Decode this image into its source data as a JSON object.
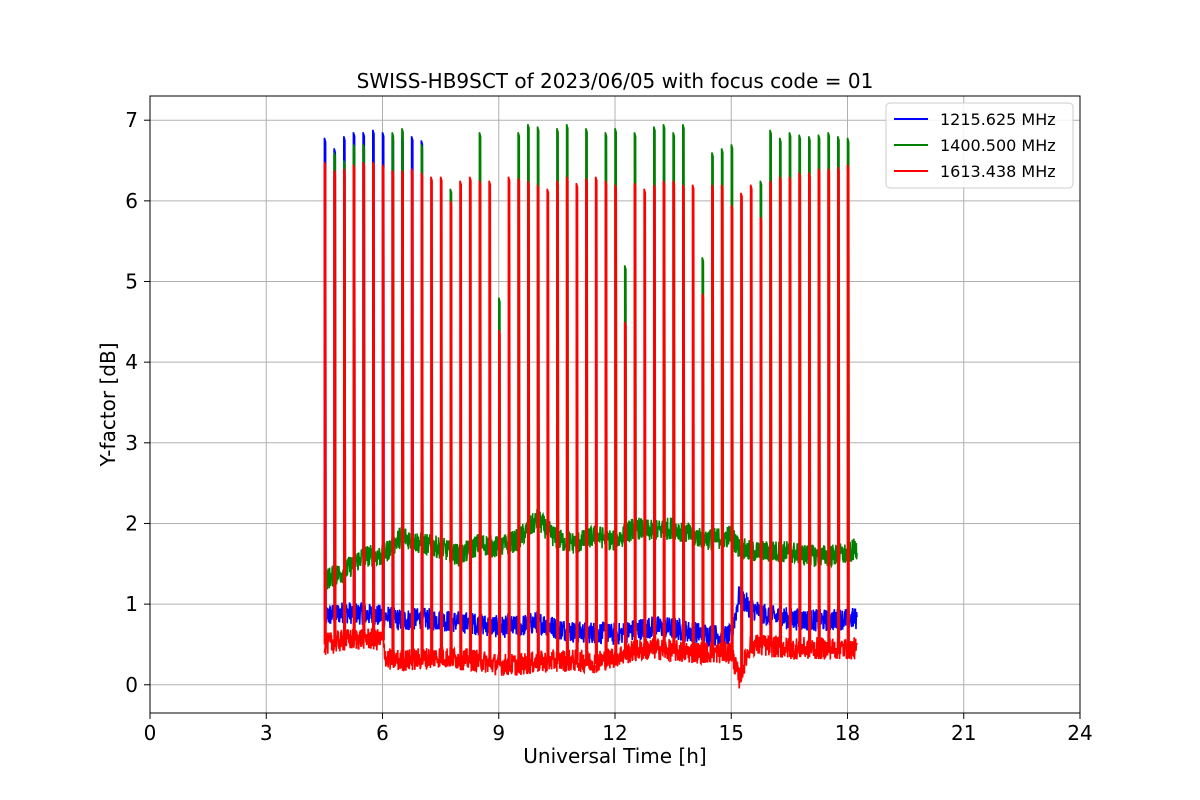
{
  "chart_data": {
    "type": "line",
    "title": "SWISS-HB9SCT of 2023/06/05 with focus code = 01",
    "xlabel": "Universal Time [h]",
    "ylabel": "Y-factor [dB]",
    "xlim": [
      0,
      24
    ],
    "ylim": [
      -0.35,
      7.3
    ],
    "xticks": [
      0,
      3,
      6,
      9,
      12,
      15,
      18,
      21,
      24
    ],
    "yticks": [
      0,
      1,
      2,
      3,
      4,
      5,
      6,
      7
    ],
    "grid": true,
    "legend_position": "top-right",
    "series": [
      {
        "name": "1215.625 MHz",
        "color": "#0000ff",
        "baseline_x": [
          4.5,
          5.0,
          5.5,
          6.0,
          6.5,
          7.0,
          7.5,
          8.0,
          8.5,
          9.0,
          9.5,
          10.0,
          10.5,
          11.0,
          11.5,
          12.0,
          12.5,
          13.0,
          13.5,
          14.0,
          14.5,
          15.0,
          15.2,
          15.5,
          16.0,
          16.5,
          17.0,
          17.5,
          18.0,
          18.25
        ],
        "baseline_y": [
          0.85,
          0.9,
          0.88,
          0.85,
          0.8,
          0.82,
          0.8,
          0.78,
          0.75,
          0.72,
          0.72,
          0.78,
          0.7,
          0.65,
          0.65,
          0.62,
          0.68,
          0.72,
          0.7,
          0.65,
          0.62,
          0.6,
          1.1,
          0.95,
          0.85,
          0.82,
          0.8,
          0.8,
          0.82,
          0.82
        ],
        "peaks_x": [
          4.5,
          4.75,
          5.0,
          5.25,
          5.5,
          5.75,
          6.0,
          6.25,
          6.5,
          6.75,
          7.0
        ],
        "peaks_y": [
          6.78,
          6.65,
          6.8,
          6.85,
          6.85,
          6.88,
          6.85,
          6.8,
          6.78,
          6.8,
          6.75
        ]
      },
      {
        "name": "1400.500 MHz",
        "color": "#008000",
        "baseline_x": [
          4.5,
          5.0,
          5.5,
          6.0,
          6.5,
          7.0,
          7.5,
          8.0,
          8.5,
          9.0,
          9.5,
          10.0,
          10.5,
          11.0,
          11.5,
          12.0,
          12.5,
          13.0,
          13.5,
          14.0,
          14.5,
          15.0,
          15.2,
          15.5,
          16.0,
          16.5,
          17.0,
          17.5,
          18.0,
          18.25
        ],
        "baseline_y": [
          1.3,
          1.4,
          1.6,
          1.6,
          1.85,
          1.75,
          1.7,
          1.6,
          1.75,
          1.7,
          1.8,
          2.05,
          1.8,
          1.75,
          1.85,
          1.78,
          1.95,
          1.9,
          1.95,
          1.85,
          1.8,
          1.85,
          1.7,
          1.65,
          1.65,
          1.65,
          1.6,
          1.6,
          1.62,
          1.7
        ],
        "peaks_x": [
          4.75,
          5.0,
          5.25,
          5.5,
          6.25,
          6.5,
          7.0,
          7.75,
          8.5,
          9.0,
          9.5,
          9.75,
          10.0,
          10.5,
          10.75,
          11.25,
          11.75,
          12.0,
          12.25,
          12.5,
          13.0,
          13.25,
          13.5,
          13.75,
          14.25,
          14.5,
          14.75,
          15.0,
          15.75,
          16.0,
          16.25,
          16.5,
          16.75,
          17.0,
          17.25,
          17.5,
          17.75,
          18.0
        ],
        "peaks_y": [
          6.6,
          6.5,
          6.7,
          6.7,
          6.85,
          6.9,
          6.7,
          6.15,
          6.85,
          4.8,
          6.85,
          6.95,
          6.92,
          6.9,
          6.95,
          6.9,
          6.85,
          6.9,
          5.2,
          6.85,
          6.92,
          6.95,
          6.85,
          6.95,
          5.3,
          6.6,
          6.65,
          6.7,
          6.25,
          6.88,
          6.78,
          6.85,
          6.82,
          6.8,
          6.82,
          6.85,
          6.8,
          6.78
        ]
      },
      {
        "name": "1613.438 MHz",
        "color": "#ff0000",
        "baseline_x": [
          4.5,
          5.0,
          5.5,
          6.0,
          6.1,
          6.5,
          7.0,
          7.5,
          8.0,
          8.5,
          9.0,
          9.5,
          10.0,
          10.5,
          11.0,
          11.5,
          12.0,
          12.5,
          13.0,
          13.5,
          14.0,
          14.5,
          15.0,
          15.2,
          15.5,
          16.0,
          16.5,
          17.0,
          17.5,
          18.0,
          18.25
        ],
        "baseline_y": [
          0.5,
          0.55,
          0.58,
          0.55,
          0.32,
          0.3,
          0.32,
          0.35,
          0.32,
          0.3,
          0.25,
          0.25,
          0.28,
          0.3,
          0.3,
          0.28,
          0.35,
          0.42,
          0.45,
          0.42,
          0.4,
          0.4,
          0.4,
          0.08,
          0.5,
          0.48,
          0.45,
          0.45,
          0.45,
          0.45,
          0.45
        ],
        "peaks_x": [
          4.5,
          4.75,
          5.0,
          5.25,
          5.5,
          5.75,
          6.0,
          6.25,
          6.5,
          6.75,
          7.0,
          7.25,
          7.5,
          7.75,
          8.0,
          8.25,
          8.5,
          8.75,
          9.0,
          9.25,
          9.5,
          9.75,
          10.0,
          10.25,
          10.5,
          10.75,
          11.0,
          11.25,
          11.5,
          11.75,
          12.0,
          12.25,
          12.5,
          12.75,
          13.0,
          13.25,
          13.5,
          13.75,
          14.0,
          14.25,
          14.5,
          14.75,
          15.0,
          15.25,
          15.5,
          15.75,
          16.0,
          16.25,
          16.5,
          16.75,
          17.0,
          17.25,
          17.5,
          17.75,
          18.0
        ],
        "peaks_y": [
          6.48,
          6.38,
          6.4,
          6.45,
          6.48,
          6.48,
          6.45,
          6.38,
          6.38,
          6.4,
          6.35,
          6.3,
          6.3,
          6.0,
          6.25,
          6.3,
          6.25,
          6.25,
          4.4,
          6.3,
          6.28,
          6.25,
          6.2,
          6.15,
          6.25,
          6.3,
          6.22,
          6.28,
          6.3,
          6.25,
          6.2,
          4.5,
          6.22,
          6.15,
          6.2,
          6.25,
          6.25,
          6.2,
          6.2,
          4.85,
          6.2,
          6.2,
          5.95,
          6.1,
          6.2,
          5.8,
          6.25,
          6.3,
          6.3,
          6.35,
          6.35,
          6.4,
          6.4,
          6.42,
          6.45
        ]
      }
    ]
  }
}
